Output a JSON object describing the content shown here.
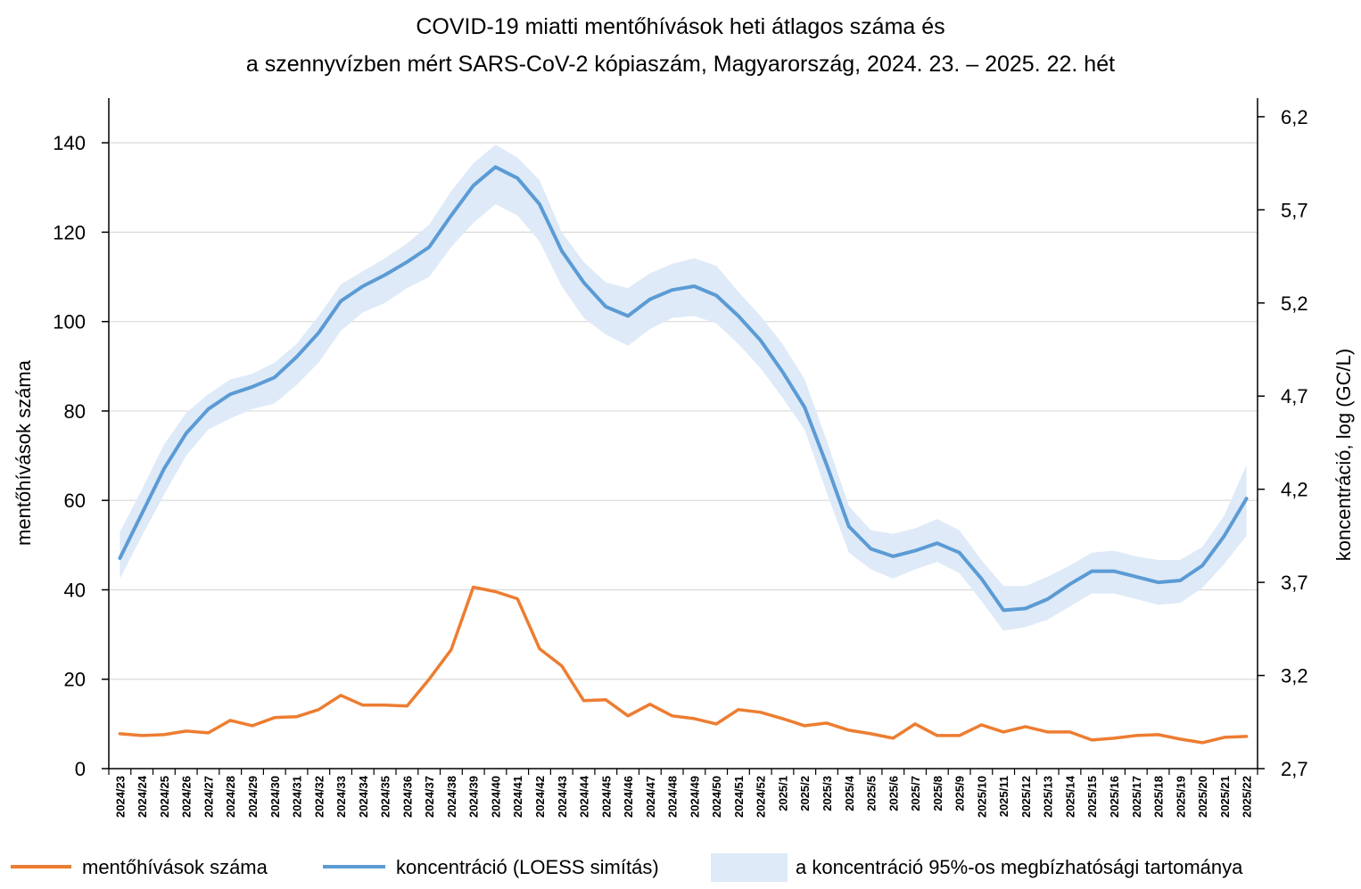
{
  "chart_data": {
    "type": "line",
    "title_line1": "COVID-19 miatti mentőhívások heti átlagos száma és",
    "title_line2": "a szennyvízben mért SARS-CoV-2 kópiaszám, Magyarország, 2024. 23. – 2025. 22. hét",
    "ylabel_left": "mentőhívások száma",
    "ylabel_right": "koncentráció,  log (GC/L)",
    "ylim_left": [
      0,
      150
    ],
    "yticks_left": [
      "0",
      "20",
      "40",
      "60",
      "80",
      "100",
      "120",
      "140"
    ],
    "ylim_right": [
      2.7,
      6.3
    ],
    "yticks_right": [
      "2,7",
      "3,2",
      "3,7",
      "4,2",
      "4,7",
      "5,2",
      "5,7",
      "6,2"
    ],
    "categories": [
      "2024/23",
      "2024/24",
      "2024/25",
      "2024/26",
      "2024/27",
      "2024/28",
      "2024/29",
      "2024/30",
      "2024/31",
      "2024/32",
      "2024/33",
      "2024/34",
      "2024/35",
      "2024/36",
      "2024/37",
      "2024/38",
      "2024/39",
      "2024/40",
      "2024/41",
      "2024/42",
      "2024/43",
      "2024/44",
      "2024/45",
      "2024/46",
      "2024/47",
      "2024/48",
      "2024/49",
      "2024/50",
      "2024/51",
      "2024/52",
      "2025/1",
      "2025/2",
      "2025/3",
      "2025/4",
      "2025/5",
      "2025/6",
      "2025/7",
      "2025/8",
      "2025/9",
      "2025/10",
      "2025/11",
      "2025/12",
      "2025/13",
      "2025/14",
      "2025/15",
      "2025/16",
      "2025/17",
      "2025/18",
      "2025/19",
      "2025/20",
      "2025/21",
      "2025/22"
    ],
    "series": [
      {
        "name": "mentőhívások száma",
        "axis": "left",
        "color": "#ED7D31",
        "values": [
          7.8,
          7.4,
          7.6,
          8.4,
          8.0,
          10.8,
          9.6,
          11.4,
          11.6,
          13.2,
          16.4,
          14.2,
          14.2,
          14.0,
          20.0,
          26.6,
          40.6,
          39.6,
          38.0,
          26.8,
          23.0,
          15.2,
          15.4,
          11.8,
          14.4,
          11.8,
          11.2,
          10.0,
          13.2,
          12.6,
          11.2,
          9.6,
          10.2,
          8.6,
          7.8,
          6.8,
          10.0,
          7.4,
          7.4,
          9.8,
          8.2,
          9.4,
          8.2,
          8.2,
          6.4,
          6.8,
          7.4,
          7.6,
          6.6,
          5.8,
          7.0,
          7.2
        ]
      },
      {
        "name": "koncentráció (LOESS simítás)",
        "axis": "right",
        "color": "#5B9BD5",
        "values": [
          3.83,
          4.07,
          4.31,
          4.5,
          4.63,
          4.71,
          4.75,
          4.8,
          4.91,
          5.04,
          5.21,
          5.29,
          5.35,
          5.42,
          5.5,
          5.67,
          5.83,
          5.93,
          5.87,
          5.73,
          5.48,
          5.31,
          5.18,
          5.13,
          5.22,
          5.27,
          5.29,
          5.24,
          5.13,
          5.0,
          4.83,
          4.64,
          4.33,
          4.0,
          3.88,
          3.84,
          3.87,
          3.91,
          3.86,
          3.72,
          3.55,
          3.56,
          3.61,
          3.69,
          3.76,
          3.76,
          3.73,
          3.7,
          3.71,
          3.79,
          3.95,
          4.15
        ]
      }
    ],
    "band": {
      "name": "a koncentráció 95%-os megbízhatósági tartománya",
      "axis": "right",
      "color": "#DEEAF7",
      "lower": [
        3.72,
        3.95,
        4.17,
        4.38,
        4.52,
        4.58,
        4.63,
        4.66,
        4.76,
        4.88,
        5.05,
        5.15,
        5.2,
        5.28,
        5.34,
        5.5,
        5.63,
        5.73,
        5.67,
        5.53,
        5.29,
        5.12,
        5.03,
        4.97,
        5.06,
        5.12,
        5.13,
        5.09,
        4.98,
        4.85,
        4.69,
        4.52,
        4.18,
        3.86,
        3.77,
        3.72,
        3.77,
        3.81,
        3.75,
        3.6,
        3.44,
        3.46,
        3.5,
        3.57,
        3.64,
        3.64,
        3.61,
        3.58,
        3.59,
        3.67,
        3.8,
        3.95
      ],
      "upper": [
        3.97,
        4.2,
        4.44,
        4.61,
        4.71,
        4.79,
        4.82,
        4.88,
        4.98,
        5.13,
        5.3,
        5.37,
        5.44,
        5.52,
        5.62,
        5.8,
        5.95,
        6.05,
        5.98,
        5.86,
        5.58,
        5.42,
        5.31,
        5.28,
        5.36,
        5.41,
        5.44,
        5.4,
        5.26,
        5.13,
        4.98,
        4.79,
        4.46,
        4.11,
        3.98,
        3.96,
        3.99,
        4.04,
        3.98,
        3.82,
        3.68,
        3.68,
        3.73,
        3.79,
        3.86,
        3.87,
        3.84,
        3.82,
        3.82,
        3.89,
        4.06,
        4.33
      ]
    },
    "legend_position": "bottom"
  }
}
